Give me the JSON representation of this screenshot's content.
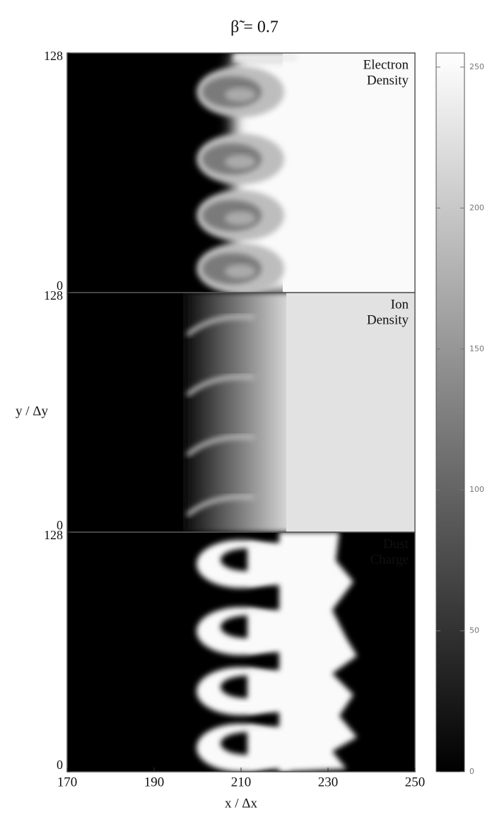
{
  "chart_data": {
    "type": "heatmap",
    "title": "β̃ = 0.7",
    "xlabel": "x / Δx",
    "ylabel": "y / Δy",
    "xlim": [
      170,
      250
    ],
    "xticks": [
      170,
      190,
      210,
      230,
      250
    ],
    "ylim": [
      0,
      128
    ],
    "yticks": [
      0,
      128
    ],
    "colormap": "gray",
    "panels": [
      {
        "label": [
          "Electron",
          "Density"
        ]
      },
      {
        "label": [
          "Ion",
          "Density"
        ]
      },
      {
        "label": [
          "Dust",
          "Charge"
        ]
      }
    ],
    "colorbar": {
      "lim": [
        0,
        255
      ],
      "ticks": [
        0,
        50,
        100,
        150,
        200,
        250
      ]
    }
  }
}
